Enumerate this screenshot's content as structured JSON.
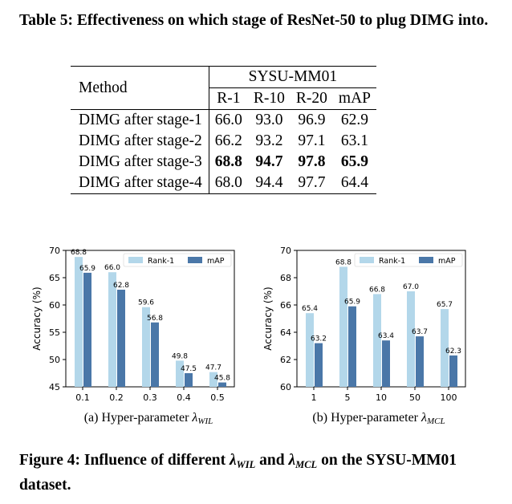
{
  "table": {
    "caption": "Table 5: Effectiveness on which stage of ResNet-50 to plug DIMG into.",
    "header_method": "Method",
    "dataset": "SYSU-MM01",
    "metrics": [
      "R-1",
      "R-10",
      "R-20",
      "mAP"
    ],
    "rows": [
      {
        "method": "DIMG after stage-1",
        "values": [
          "66.0",
          "93.0",
          "96.9",
          "62.9"
        ],
        "bold": false
      },
      {
        "method": "DIMG after stage-2",
        "values": [
          "66.2",
          "93.2",
          "97.1",
          "63.1"
        ],
        "bold": false
      },
      {
        "method": "DIMG after stage-3",
        "values": [
          "68.8",
          "94.7",
          "97.8",
          "65.9"
        ],
        "bold": true
      },
      {
        "method": "DIMG after stage-4",
        "values": [
          "68.0",
          "94.4",
          "97.7",
          "64.4"
        ],
        "bold": false
      }
    ]
  },
  "chart_data": [
    {
      "type": "bar",
      "categories": [
        "0.1",
        "0.2",
        "0.3",
        "0.4",
        "0.5"
      ],
      "series": [
        {
          "name": "Rank-1",
          "values": [
            68.8,
            66.0,
            59.6,
            49.8,
            47.7
          ],
          "labels": [
            "68.8",
            "66.0",
            "59.6",
            "49.8",
            "47.7"
          ],
          "color": "#b3d7ea"
        },
        {
          "name": "mAP",
          "values": [
            65.9,
            62.8,
            56.8,
            47.5,
            45.8
          ],
          "labels": [
            "65.9",
            "62.8",
            "56.8",
            "47.5",
            "45.8"
          ],
          "color": "#4a77a8"
        }
      ],
      "ylabel": "Accuracy (%)",
      "ylim": [
        45,
        70
      ],
      "yticks": [
        "45",
        "50",
        "55",
        "60",
        "65",
        "70"
      ],
      "legend": "top-right",
      "grid": false
    },
    {
      "type": "bar",
      "categories": [
        "1",
        "5",
        "10",
        "50",
        "100"
      ],
      "series": [
        {
          "name": "Rank-1",
          "values": [
            65.4,
            68.8,
            66.8,
            67.0,
            65.7
          ],
          "labels": [
            "65.4",
            "68.8",
            "66.8",
            "67.0",
            "65.7"
          ],
          "color": "#b3d7ea"
        },
        {
          "name": "mAP",
          "values": [
            63.2,
            65.9,
            63.4,
            63.7,
            62.3
          ],
          "labels": [
            "63.2",
            "65.9",
            "63.4",
            "63.7",
            "62.3"
          ],
          "color": "#4a77a8"
        }
      ],
      "ylabel": "Accuracy (%)",
      "ylim": [
        60,
        70
      ],
      "yticks": [
        "60",
        "62",
        "64",
        "66",
        "68",
        "70"
      ],
      "legend": "top-right",
      "grid": false
    }
  ],
  "subcaptions": {
    "a_prefix": "(a) Hyper-parameter ",
    "a_symbol": "λ",
    "a_sub": "WIL",
    "b_prefix": "(b) Hyper-parameter ",
    "b_symbol": "λ",
    "b_sub": "MCL"
  },
  "figure_caption": {
    "prefix": "Figure 4: Influence of different ",
    "sym1": "λ",
    "sub1": "WIL",
    "mid": " and ",
    "sym2": "λ",
    "sub2": "MCL",
    "suffix": " on the SYSU-MM01 dataset."
  }
}
